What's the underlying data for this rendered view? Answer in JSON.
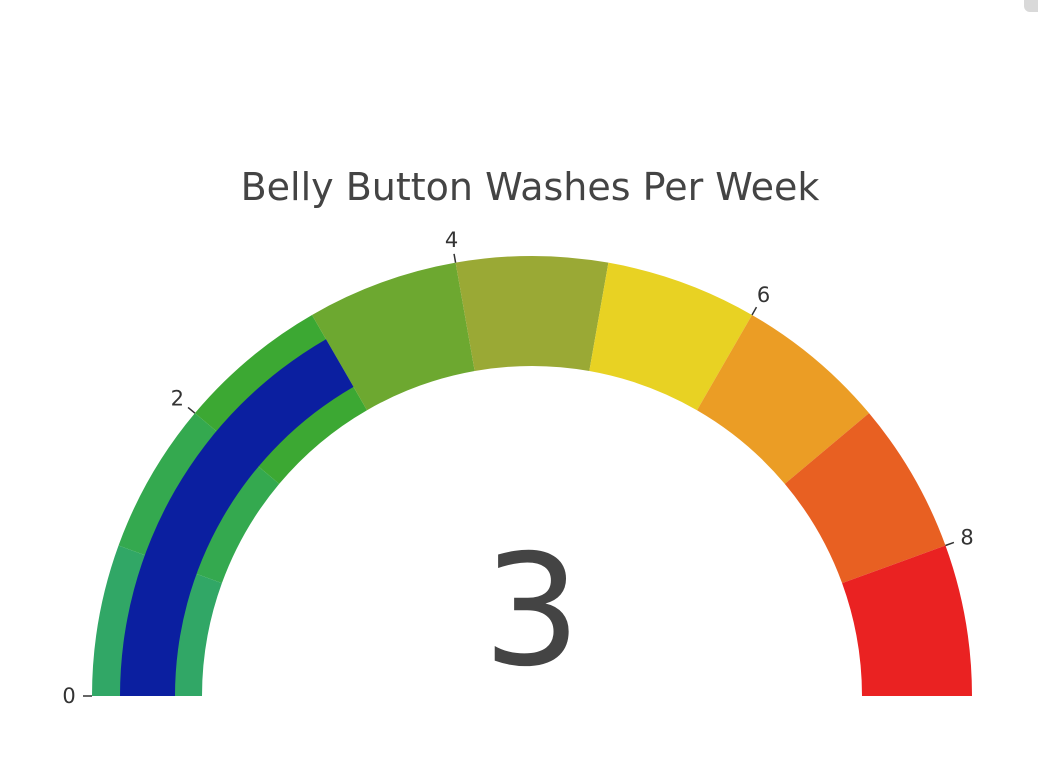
{
  "chart_data": {
    "type": "gauge",
    "title": "Belly Button Washes Per Week",
    "value": 3,
    "value_label": "3",
    "range": [
      0,
      9
    ],
    "tick_values": [
      0,
      2,
      4,
      6,
      8
    ],
    "tick_labels": [
      "0",
      "2",
      "4",
      "6",
      "8"
    ],
    "steps": [
      {
        "from": 0,
        "to": 1,
        "color": "#31a766"
      },
      {
        "from": 1,
        "to": 2,
        "color": "#34a94f"
      },
      {
        "from": 2,
        "to": 3,
        "color": "#3ca833"
      },
      {
        "from": 3,
        "to": 4,
        "color": "#6da830"
      },
      {
        "from": 4,
        "to": 5,
        "color": "#9aa935"
      },
      {
        "from": 5,
        "to": 6,
        "color": "#e8d223"
      },
      {
        "from": 6,
        "to": 7,
        "color": "#eb9d25"
      },
      {
        "from": 7,
        "to": 8,
        "color": "#e86022"
      },
      {
        "from": 8,
        "to": 9,
        "color": "#ea2222"
      }
    ],
    "bar_color": "#0b1fa0"
  }
}
